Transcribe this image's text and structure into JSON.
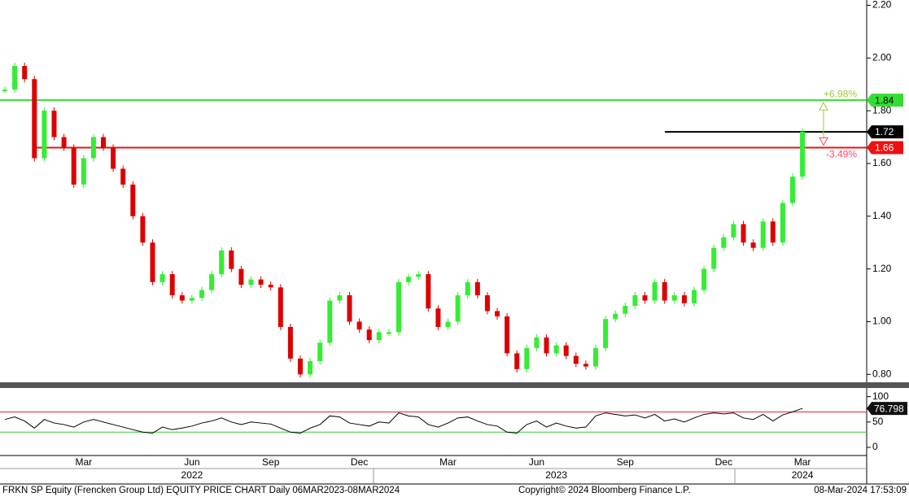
{
  "chart_data": [
    {
      "type": "candlestick",
      "categories": [
        null,
        null,
        null,
        null,
        null,
        null,
        null,
        null,
        "Mar",
        null,
        null,
        null,
        null,
        null,
        null,
        null,
        null,
        null,
        null,
        "Jun",
        null,
        null,
        null,
        null,
        null,
        null,
        null,
        "Sep",
        null,
        null,
        null,
        null,
        null,
        null,
        null,
        null,
        "Dec",
        null,
        null,
        null,
        null,
        null,
        null,
        null,
        null,
        "Mar",
        null,
        null,
        null,
        null,
        null,
        null,
        null,
        null,
        "Jun",
        null,
        null,
        null,
        null,
        null,
        null,
        null,
        null,
        "Sep",
        null,
        null,
        null,
        null,
        null,
        null,
        null,
        null,
        null,
        "Dec",
        null,
        null,
        null,
        null,
        null,
        null,
        null,
        "Mar"
      ],
      "years": [
        null,
        null,
        null,
        null,
        null,
        null,
        null,
        null,
        null,
        null,
        null,
        null,
        null,
        null,
        null,
        null,
        null,
        null,
        null,
        "2022",
        null,
        null,
        null,
        null,
        null,
        null,
        null,
        null,
        null,
        null,
        null,
        null,
        null,
        null,
        null,
        null,
        null,
        null,
        null,
        null,
        null,
        null,
        null,
        null,
        null,
        null,
        null,
        null,
        null,
        null,
        null,
        null,
        null,
        null,
        null,
        null,
        "2023",
        null,
        null,
        null,
        null,
        null,
        null,
        null,
        null,
        null,
        null,
        null,
        null,
        null,
        null,
        null,
        null,
        null,
        null,
        null,
        null,
        null,
        null,
        null,
        null,
        "2024"
      ],
      "values": [
        1.88,
        1.97,
        1.92,
        1.62,
        1.8,
        1.7,
        1.66,
        1.52,
        1.62,
        1.7,
        1.66,
        1.58,
        1.52,
        1.4,
        1.3,
        1.15,
        1.18,
        1.1,
        1.08,
        1.09,
        1.12,
        1.18,
        1.27,
        1.2,
        1.14,
        1.16,
        1.14,
        1.13,
        0.98,
        0.86,
        0.8,
        0.85,
        0.92,
        1.08,
        1.1,
        1.0,
        0.97,
        0.93,
        0.96,
        0.96,
        1.15,
        1.17,
        1.18,
        1.05,
        0.98,
        1.0,
        1.1,
        1.15,
        1.1,
        1.04,
        1.02,
        0.88,
        0.82,
        0.9,
        0.94,
        0.88,
        0.91,
        0.87,
        0.84,
        0.83,
        0.9,
        1.01,
        1.03,
        1.06,
        1.1,
        1.08,
        1.15,
        1.08,
        1.1,
        1.07,
        1.12,
        1.2,
        1.28,
        1.32,
        1.37,
        1.3,
        1.28,
        1.38,
        1.3,
        1.45,
        1.55,
        1.72
      ],
      "up_color": "#33ee33",
      "down_color": "#dd0000",
      "ylim": [
        0.77,
        2.22
      ],
      "yticks": [
        {
          "value": 0.8,
          "label": "0.80"
        },
        {
          "value": 1.0,
          "label": "1.00"
        },
        {
          "value": 1.2,
          "label": "1.20"
        },
        {
          "value": 1.4,
          "label": "1.40"
        },
        {
          "value": 1.6,
          "label": "1.60"
        },
        {
          "value": 1.8,
          "label": "1.80"
        },
        {
          "value": 2.0,
          "label": "2.00"
        },
        {
          "value": 2.2,
          "label": "2.20"
        }
      ],
      "levels": [
        {
          "value": 1.84,
          "color": "#33dd33",
          "text_color": "#000000"
        },
        {
          "value": 1.72,
          "color": "#000000",
          "text_color": "#ffffff"
        },
        {
          "value": 1.66,
          "color": "#ee1111",
          "text_color": "#ffffff"
        }
      ],
      "annotations": [
        {
          "text": "+6.98%",
          "color": "#99cc33"
        },
        {
          "text": "-3.49%",
          "color": "#ff4466"
        }
      ]
    },
    {
      "type": "line",
      "values": [
        55,
        60,
        52,
        38,
        55,
        48,
        45,
        40,
        50,
        55,
        50,
        45,
        40,
        35,
        30,
        28,
        40,
        35,
        38,
        42,
        48,
        52,
        58,
        50,
        45,
        50,
        48,
        46,
        38,
        30,
        28,
        38,
        45,
        62,
        60,
        48,
        45,
        42,
        50,
        48,
        68,
        62,
        60,
        45,
        40,
        48,
        58,
        60,
        52,
        45,
        42,
        30,
        28,
        45,
        52,
        40,
        48,
        42,
        38,
        40,
        62,
        68,
        65,
        62,
        64,
        58,
        65,
        52,
        56,
        50,
        58,
        65,
        68,
        66,
        68,
        58,
        55,
        65,
        52,
        64,
        70,
        76.798
      ],
      "color": "#000000",
      "ylim": [
        -16,
        117
      ],
      "yticks": [
        0,
        50,
        100
      ],
      "levels": [
        {
          "value": 70,
          "color": "#dd2222"
        },
        {
          "value": 30,
          "color": "#33cc33"
        }
      ]
    }
  ],
  "footer": {
    "left": "FRKN SP Equity (Frencken Group Ltd) EQUITY PRICE CHART  Daily 06MAR2023-08MAR2024",
    "center": "Copyright© 2024 Bloomberg Finance L.P.",
    "right": "08-Mar-2024 17:53:09"
  }
}
